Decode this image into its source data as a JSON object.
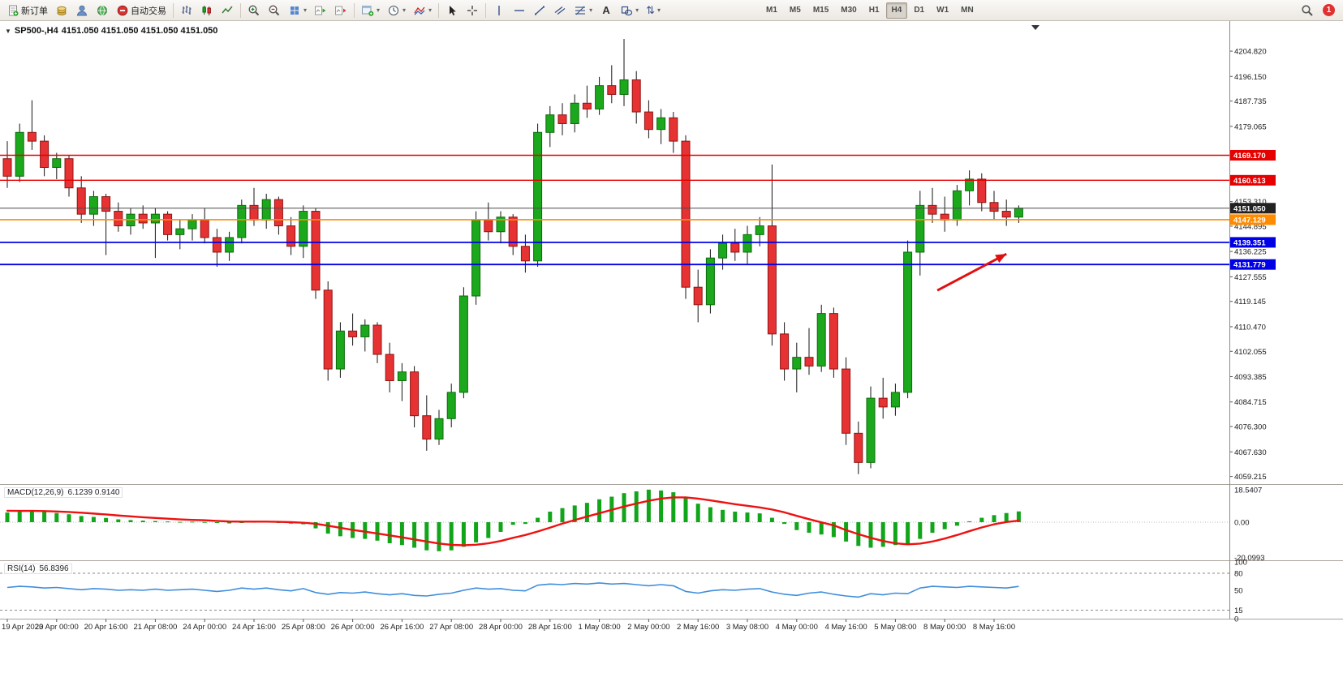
{
  "toolbar": {
    "new_order": "新订单",
    "auto_trading": "自动交易",
    "timeframes": [
      "M1",
      "M5",
      "M15",
      "M30",
      "H1",
      "H4",
      "D1",
      "W1",
      "MN"
    ],
    "active_timeframe": "H4",
    "notification_badge": "1"
  },
  "chart_header": {
    "symbol_timeframe": "SP500-,H4",
    "ohlc": "4151.050 4151.050 4151.050 4151.050"
  },
  "indicators": {
    "macd_label": "MACD(12,26,9)",
    "macd_values": "6.1239 0.9140",
    "rsi_label": "RSI(14)",
    "rsi_value": "56.8396"
  },
  "chart_data": {
    "type": "candlestick",
    "symbol": "SP500-",
    "timeframe": "H4",
    "price_range": [
      4056.6,
      4214.0
    ],
    "price_axis_ticks": [
      "4204.820",
      "4196.150",
      "4187.735",
      "4179.065",
      "4153.310",
      "4144.895",
      "4136.225",
      "4127.555",
      "4119.145",
      "4110.470",
      "4102.055",
      "4093.385",
      "4084.715",
      "4076.300",
      "4067.630",
      "4059.215"
    ],
    "time_labels": [
      "19 Apr 2023",
      "20 Apr 00:00",
      "20 Apr 16:00",
      "21 Apr 08:00",
      "24 Apr 00:00",
      "24 Apr 16:00",
      "25 Apr 08:00",
      "26 Apr 00:00",
      "26 Apr 16:00",
      "27 Apr 08:00",
      "28 Apr 00:00",
      "28 Apr 16:00",
      "1 May 08:00",
      "2 May 00:00",
      "2 May 16:00",
      "3 May 08:00",
      "4 May 00:00",
      "4 May 16:00",
      "5 May 08:00",
      "8 May 00:00",
      "8 May 16:00"
    ],
    "candles": [
      [
        4168,
        4174,
        4158,
        4162
      ],
      [
        4162,
        4180,
        4160,
        4177
      ],
      [
        4177,
        4188,
        4171,
        4174
      ],
      [
        4174,
        4176,
        4162,
        4165
      ],
      [
        4165,
        4170,
        4161,
        4168
      ],
      [
        4168,
        4169,
        4155,
        4158
      ],
      [
        4158,
        4162,
        4146,
        4149
      ],
      [
        4149,
        4157,
        4145,
        4155
      ],
      [
        4155,
        4156,
        4135,
        4150
      ],
      [
        4150,
        4153,
        4143,
        4145
      ],
      [
        4145,
        4151,
        4142,
        4149
      ],
      [
        4149,
        4152,
        4144,
        4146
      ],
      [
        4146,
        4151,
        4134,
        4149
      ],
      [
        4149,
        4150,
        4140,
        4142
      ],
      [
        4142,
        4147,
        4137,
        4144
      ],
      [
        4144,
        4149,
        4140,
        4147
      ],
      [
        4147,
        4151,
        4139,
        4141
      ],
      [
        4141,
        4144,
        4131,
        4136
      ],
      [
        4136,
        4143,
        4133,
        4141
      ],
      [
        4141,
        4154,
        4139,
        4152
      ],
      [
        4152,
        4158,
        4145,
        4147
      ],
      [
        4147,
        4156,
        4144,
        4154
      ],
      [
        4154,
        4155,
        4142,
        4145
      ],
      [
        4145,
        4148,
        4135,
        4138
      ],
      [
        4138,
        4152,
        4134,
        4150
      ],
      [
        4150,
        4151,
        4120,
        4123
      ],
      [
        4123,
        4126,
        4092,
        4096
      ],
      [
        4096,
        4112,
        4093,
        4109
      ],
      [
        4109,
        4115,
        4104,
        4107
      ],
      [
        4107,
        4113,
        4102,
        4111
      ],
      [
        4111,
        4112,
        4098,
        4101
      ],
      [
        4101,
        4105,
        4088,
        4092
      ],
      [
        4092,
        4098,
        4085,
        4095
      ],
      [
        4095,
        4097,
        4076,
        4080
      ],
      [
        4080,
        4087,
        4068,
        4072
      ],
      [
        4072,
        4082,
        4070,
        4079
      ],
      [
        4079,
        4091,
        4076,
        4088
      ],
      [
        4088,
        4124,
        4086,
        4121
      ],
      [
        4121,
        4150,
        4118,
        4147
      ],
      [
        4147,
        4153,
        4140,
        4143
      ],
      [
        4143,
        4150,
        4139,
        4148
      ],
      [
        4148,
        4149,
        4135,
        4138
      ],
      [
        4138,
        4142,
        4129,
        4133
      ],
      [
        4133,
        4180,
        4131,
        4177
      ],
      [
        4177,
        4186,
        4172,
        4183
      ],
      [
        4183,
        4187,
        4176,
        4180
      ],
      [
        4180,
        4190,
        4177,
        4187
      ],
      [
        4187,
        4193,
        4182,
        4185
      ],
      [
        4185,
        4196,
        4183,
        4193
      ],
      [
        4193,
        4200,
        4187,
        4190
      ],
      [
        4190,
        4209,
        4186,
        4195
      ],
      [
        4195,
        4198,
        4180,
        4184
      ],
      [
        4184,
        4188,
        4175,
        4178
      ],
      [
        4178,
        4185,
        4173,
        4182
      ],
      [
        4182,
        4184,
        4170,
        4174
      ],
      [
        4174,
        4176,
        4120,
        4124
      ],
      [
        4124,
        4130,
        4112,
        4118
      ],
      [
        4118,
        4137,
        4115,
        4134
      ],
      [
        4134,
        4142,
        4130,
        4139
      ],
      [
        4139,
        4144,
        4133,
        4136
      ],
      [
        4136,
        4145,
        4132,
        4142
      ],
      [
        4142,
        4148,
        4138,
        4145
      ],
      [
        4145,
        4166,
        4104,
        4108
      ],
      [
        4108,
        4112,
        4092,
        4096
      ],
      [
        4096,
        4105,
        4088,
        4100
      ],
      [
        4100,
        4110,
        4094,
        4097
      ],
      [
        4097,
        4118,
        4095,
        4115
      ],
      [
        4115,
        4117,
        4093,
        4096
      ],
      [
        4096,
        4100,
        4070,
        4074
      ],
      [
        4074,
        4078,
        4060,
        4064
      ],
      [
        4064,
        4090,
        4062,
        4086
      ],
      [
        4086,
        4093,
        4079,
        4083
      ],
      [
        4083,
        4091,
        4080,
        4088
      ],
      [
        4088,
        4140,
        4086,
        4136
      ],
      [
        4136,
        4157,
        4128,
        4152
      ],
      [
        4152,
        4158,
        4146,
        4149
      ],
      [
        4149,
        4155,
        4143,
        4147
      ],
      [
        4147,
        4159,
        4145,
        4157
      ],
      [
        4157,
        4164,
        4152,
        4161
      ],
      [
        4161,
        4163,
        4150,
        4153
      ],
      [
        4153,
        4157,
        4147,
        4150
      ],
      [
        4150,
        4154,
        4145,
        4148
      ],
      [
        4148,
        4152,
        4146,
        4151.05
      ]
    ],
    "hlines": [
      {
        "price": 4169.17,
        "label": "4169.170",
        "color": "#e60000",
        "width": 1.4,
        "bid": false
      },
      {
        "price": 4160.613,
        "label": "4160.613",
        "color": "#e60000",
        "width": 1.4,
        "bid": false
      },
      {
        "price": 4151.05,
        "label": "4151.050",
        "color": "#4a4a4a",
        "width": 1,
        "bid": true
      },
      {
        "price": 4147.129,
        "label": "4147.129",
        "color": "#ff8c00",
        "width": 1.6,
        "bid": false
      },
      {
        "price": 4139.351,
        "label": "4139.351",
        "color": "#0000e6",
        "width": 1.8,
        "bid": false
      },
      {
        "price": 4131.779,
        "label": "4131.779",
        "color": "#0000e6",
        "width": 1.8,
        "bid": false
      }
    ],
    "macd": {
      "histogram": [
        5.5,
        6,
        6.5,
        5.8,
        5.2,
        4.5,
        3.5,
        3,
        2.4,
        1.6,
        1.2,
        0.9,
        0.7,
        0.4,
        0.2,
        0.3,
        0.1,
        -0.5,
        -0.7,
        -0.2,
        0.2,
        0.4,
        -0.1,
        -0.8,
        -1.2,
        -3.5,
        -6.5,
        -8,
        -9,
        -9.5,
        -10.5,
        -12,
        -13,
        -14.5,
        -16,
        -16.5,
        -16,
        -14,
        -11.5,
        -9,
        -5.5,
        -1.5,
        -1,
        2.5,
        6,
        8,
        9.5,
        11,
        13,
        14.5,
        16.5,
        17.5,
        18.5,
        18,
        17,
        14,
        10.5,
        8.5,
        7,
        6,
        5.5,
        5,
        2.5,
        -1,
        -4.5,
        -6,
        -7,
        -8.5,
        -11,
        -13.5,
        -14.5,
        -14,
        -13,
        -12.5,
        -9.5,
        -6,
        -4,
        -2,
        0.5,
        2.5,
        4,
        5.2,
        6.1239
      ],
      "signal": [
        6.5,
        6.4,
        6.4,
        6.3,
        6.1,
        5.8,
        5.4,
        4.9,
        4.4,
        3.8,
        3.3,
        2.8,
        2.4,
        2.0,
        1.6,
        1.3,
        1.1,
        0.7,
        0.4,
        0.3,
        0.3,
        0.3,
        0.2,
        0.0,
        -0.3,
        -0.9,
        -2.0,
        -3.2,
        -4.4,
        -5.4,
        -6.4,
        -7.5,
        -8.6,
        -9.8,
        -11.0,
        -12.1,
        -12.9,
        -13.1,
        -12.8,
        -12.0,
        -10.7,
        -8.9,
        -7.3,
        -5.3,
        -3.1,
        -0.8,
        1.2,
        3.2,
        5.1,
        7.0,
        8.9,
        10.6,
        12.2,
        13.4,
        14.1,
        14.1,
        13.4,
        12.4,
        11.3,
        10.2,
        9.3,
        8.4,
        7.2,
        5.6,
        3.6,
        1.7,
        -0.1,
        -1.8,
        -4.5,
        -6.8,
        -8.9,
        -10.7,
        -12.0,
        -12.6,
        -12.2,
        -11.0,
        -9.3,
        -7.3,
        -5.1,
        -3.0,
        -1.2,
        0.1,
        0.914
      ],
      "scale": [
        "18.5407",
        "0.00",
        "-20.0993"
      ]
    },
    "rsi": {
      "values": [
        55,
        57,
        56,
        54,
        55,
        53,
        51,
        53,
        52,
        50,
        51,
        50,
        52,
        50,
        51,
        52,
        50,
        48,
        50,
        54,
        52,
        54,
        51,
        49,
        53,
        46,
        43,
        46,
        45,
        47,
        44,
        42,
        44,
        41,
        40,
        43,
        45,
        50,
        54,
        52,
        53,
        50,
        49,
        59,
        61,
        60,
        62,
        61,
        63,
        61,
        62,
        60,
        58,
        60,
        58,
        48,
        45,
        49,
        51,
        50,
        52,
        53,
        47,
        43,
        41,
        45,
        47,
        43,
        40,
        38,
        44,
        42,
        45,
        44,
        54,
        57,
        56,
        55,
        57,
        56,
        55,
        54,
        56.84
      ],
      "levels": [
        80,
        15
      ],
      "scale": [
        "100",
        "80",
        "50",
        "15",
        "0"
      ]
    },
    "annotations": [
      {
        "type": "arrow",
        "color": "#e01010",
        "from": {
          "bar": 75.4,
          "price": 4122.9
        },
        "to": {
          "bar": 81,
          "price": 4135.4
        }
      }
    ]
  }
}
